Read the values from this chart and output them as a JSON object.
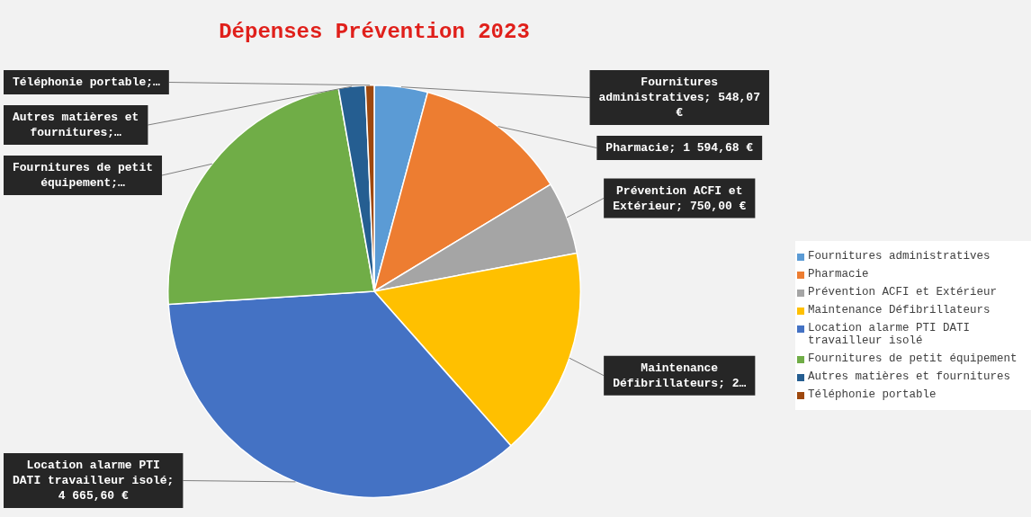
{
  "chart_data": {
    "type": "pie",
    "title": "Dépenses Prévention 2023",
    "categories": [
      "Fournitures administratives",
      "Pharmacie",
      "Prévention ACFI et Extérieur",
      "Maintenance Défibrillateurs",
      "Location alarme PTI DATI travailleur isolé",
      "Fournitures de petit équipement",
      "Autres matières et fournitures",
      "Téléphonie portable"
    ],
    "values": [
      548.07,
      1594.68,
      750.0,
      2160,
      4665.6,
      3050,
      275,
      90
    ],
    "colors": [
      "#5b9bd5",
      "#ed7d31",
      "#a5a5a5",
      "#ffc000",
      "#4472c4",
      "#70ad47",
      "#255e91",
      "#9e480e"
    ],
    "value_labels": [
      "Fournitures administratives; 548,07 €",
      "Pharmacie; 1 594,68 €",
      "Prévention ACFI et Extérieur; 750,00 €",
      "Maintenance Défibrillateurs; 2…",
      "Location alarme PTI DATI travailleur isolé; 4 665,60 €",
      "Fournitures de petit équipement;…",
      "Autres matières et fournitures;…",
      "Téléphonie portable;…"
    ],
    "legend": "right"
  }
}
